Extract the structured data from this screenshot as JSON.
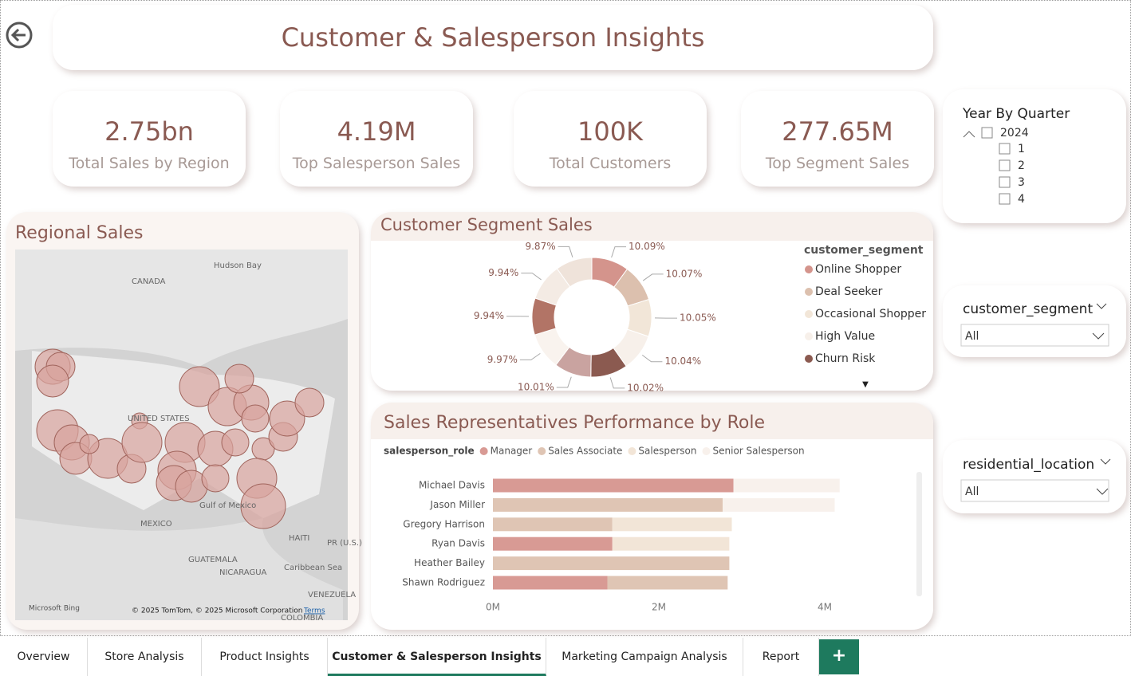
{
  "header": {
    "title": "Customer & Salesperson Insights"
  },
  "kpis": [
    {
      "value": "2.75bn",
      "label": "Total Sales by Region"
    },
    {
      "value": "4.19M",
      "label": "Top Salesperson Sales"
    },
    {
      "value": "100K",
      "label": "Total Customers"
    },
    {
      "value": "277.65M",
      "label": "Top Segment Sales"
    }
  ],
  "slicers": {
    "year": {
      "title": "Year By Quarter",
      "year": "2024",
      "quarters": [
        "1",
        "2",
        "3",
        "4"
      ]
    },
    "segment": {
      "title": "customer_segment",
      "selected": "All"
    },
    "location": {
      "title": "residential_location",
      "selected": "All"
    }
  },
  "map": {
    "title": "Regional Sales",
    "labels": [
      "Hudson Bay",
      "CANADA",
      "UNITED STATES",
      "Gulf of Mexico",
      "MEXICO",
      "HAITI",
      "PR (U.S.)",
      "GUATEMALA",
      "NICARAGUA",
      "Caribbean Sea",
      "VENEZUELA",
      "COLOMBIA"
    ],
    "brand": "Microsoft Bing",
    "attribution": "© 2025 TomTom, © 2025 Microsoft Corporation",
    "terms": "Terms"
  },
  "chart_data": [
    {
      "type": "donut",
      "title": "Customer Segment Sales",
      "legend_title": "customer_segment",
      "legend": [
        {
          "name": "Online Shopper",
          "color": "#d4948c"
        },
        {
          "name": "Deal Seeker",
          "color": "#dcc0ae"
        },
        {
          "name": "Occasional Shopper",
          "color": "#f2e6d8"
        },
        {
          "name": "High Value",
          "color": "#f7f0ea"
        },
        {
          "name": "Churn Risk",
          "color": "#8b5a50"
        }
      ],
      "values": [
        10.09,
        10.07,
        10.05,
        10.04,
        10.02,
        10.01,
        9.97,
        9.94,
        9.94,
        9.87
      ],
      "value_labels": [
        "10.09%",
        "10.07%",
        "10.05%",
        "10.04%",
        "10.02%",
        "10.01%",
        "9.97%",
        "9.94%",
        "9.94%",
        "9.87%"
      ],
      "colors": [
        "#d4948c",
        "#dcc0ae",
        "#f2e6d8",
        "#f7f0ea",
        "#8b5a50",
        "#c9a3a0",
        "#f9f3ee",
        "#b27466",
        "#f4ebe4",
        "#efe3da"
      ]
    },
    {
      "type": "bar",
      "title": "Sales Representatives Performance by Role",
      "legend_title": "salesperson_role",
      "categories": [
        "Michael Davis",
        "Jason Miller",
        "Gregory Harrison",
        "Ryan Davis",
        "Heather Bailey",
        "Shawn Rodriguez"
      ],
      "series": [
        {
          "name": "Manager",
          "color": "#d89a94",
          "values": [
            2900000,
            null,
            null,
            1440000,
            null,
            1380000
          ]
        },
        {
          "name": "Sales Associate",
          "color": "#dfc5b4",
          "values": [
            null,
            2770000,
            1440000,
            null,
            2850000,
            1450000
          ]
        },
        {
          "name": "Salesperson",
          "color": "#f2e5d7",
          "values": [
            null,
            null,
            1440000,
            1410000,
            null,
            null
          ]
        },
        {
          "name": "Senior Salesperson",
          "color": "#f8f1ec",
          "values": [
            1280000,
            1350000,
            null,
            null,
            null,
            null
          ]
        }
      ],
      "xlim": [
        0,
        5000000
      ],
      "xticks": [
        {
          "value": 0,
          "label": "0M"
        },
        {
          "value": 2000000,
          "label": "2M"
        },
        {
          "value": 4000000,
          "label": "4M"
        }
      ]
    }
  ],
  "tabs": [
    "Overview",
    "Store Analysis",
    "Product Insights",
    "Customer & Salesperson Insights",
    "Marketing Campaign Analysis",
    "Report"
  ],
  "active_tab": 3,
  "add_tab": "+"
}
